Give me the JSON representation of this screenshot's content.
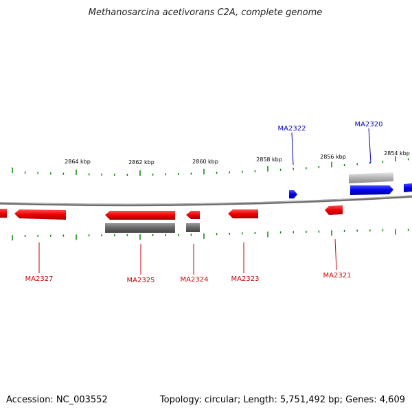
{
  "title": "Methanosarcina acetivorans C2A, complete genome",
  "footer": {
    "accession": "Accession: NC_003552",
    "summary": "Topology: circular; Length: 5,751,492 bp; Genes: 4,609"
  },
  "colors": {
    "forward_gene": "#0000ee",
    "reverse_gene": "#ee0000",
    "forward_label": "#0000bb",
    "reverse_label": "#cc0000",
    "tick": "#008800",
    "backbone": "#777777",
    "rna_track": "#777777",
    "rna_track_light": "#aaaaaa"
  },
  "scale_labels": [
    "2864 kbp",
    "2862 kbp",
    "2860 kbp",
    "2858 kbp",
    "2856 kbp",
    "2854 kbp"
  ],
  "genes": [
    {
      "id": "MA2327",
      "strand": "reverse"
    },
    {
      "id": "MA2325",
      "strand": "reverse"
    },
    {
      "id": "MA2324",
      "strand": "reverse"
    },
    {
      "id": "MA2323",
      "strand": "reverse"
    },
    {
      "id": "MA2322",
      "strand": "forward"
    },
    {
      "id": "MA2321",
      "strand": "reverse"
    },
    {
      "id": "MA2320",
      "strand": "forward"
    }
  ]
}
